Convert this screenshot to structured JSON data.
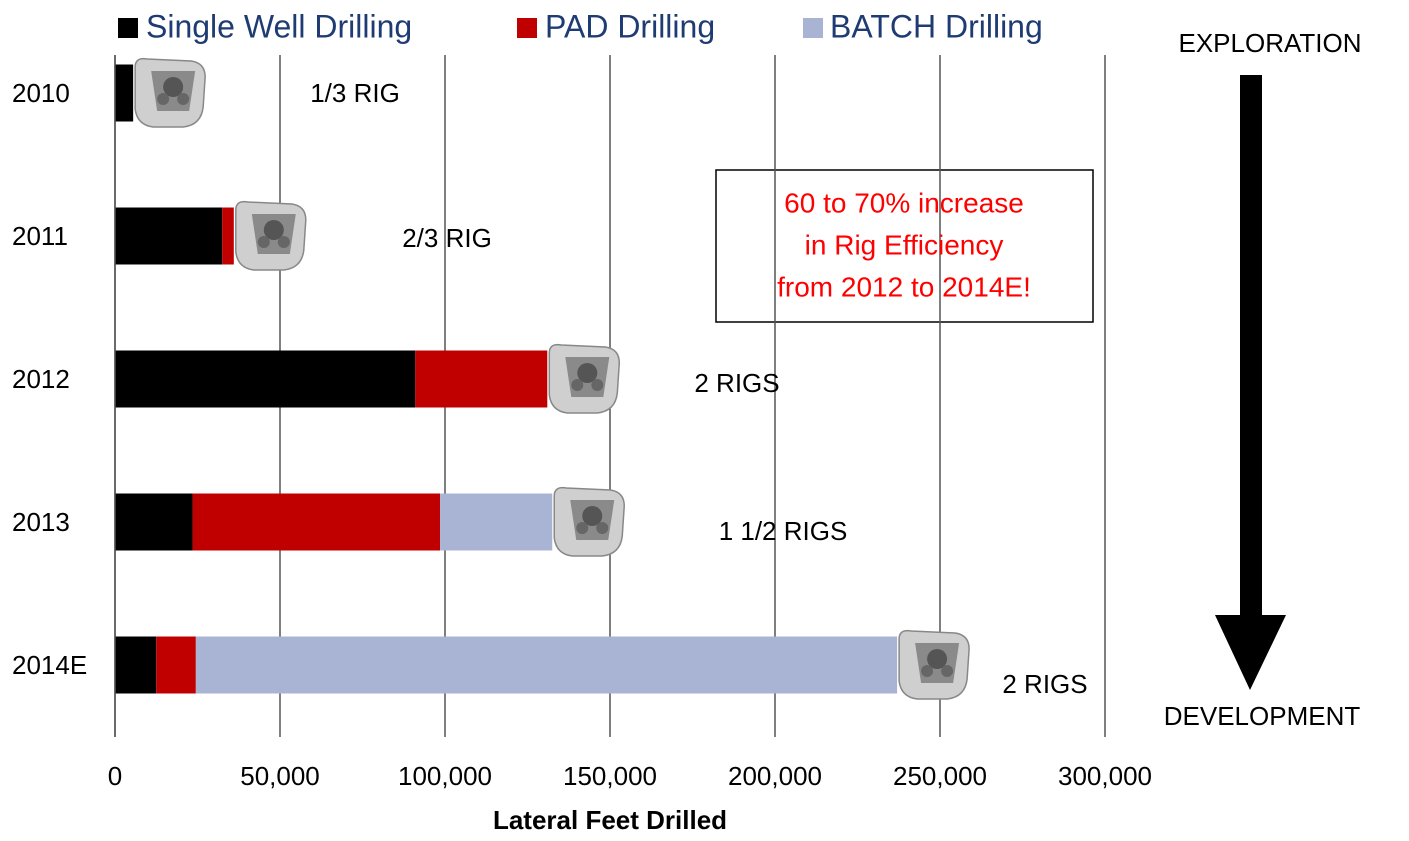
{
  "chart_data": {
    "type": "stacked-bar-horizontal",
    "categories": [
      "2010",
      "2011",
      "2012",
      "2013",
      "2014E"
    ],
    "series": [
      {
        "name": "Single Well Drilling",
        "color": "#000000",
        "values": [
          5500,
          32500,
          91000,
          23500,
          12500
        ]
      },
      {
        "name": "PAD Drilling",
        "color": "#c00000",
        "values": [
          0,
          3500,
          40000,
          75000,
          12000
        ]
      },
      {
        "name": "BATCH Drilling",
        "color": "#a9b4d4",
        "values": [
          0,
          0,
          0,
          34000,
          212500
        ]
      }
    ],
    "xlim": [
      0,
      300000
    ],
    "xticks": [
      0,
      {
        "value": 50000,
        "label": "50,000"
      },
      {
        "value": 100000,
        "label": "100,000"
      },
      {
        "value": 150000,
        "label": "150,000"
      },
      {
        "value": 200000,
        "label": "200,000"
      },
      {
        "value": 250000,
        "label": "250,000"
      },
      {
        "value": 300000,
        "label": "300,000"
      }
    ],
    "xlabel": "Lateral Feet Drilled",
    "grid": true,
    "rig_labels": [
      "1/3 RIG",
      "2/3 RIG",
      "2 RIGS",
      "1 1/2 RIGS",
      "2 RIGS"
    ],
    "annotation": [
      "60 to 70% increase",
      "in Rig Efficiency",
      "from 2012 to 2014E!"
    ],
    "arrow_top": "EXPLORATION",
    "arrow_bottom": "DEVELOPMENT"
  }
}
